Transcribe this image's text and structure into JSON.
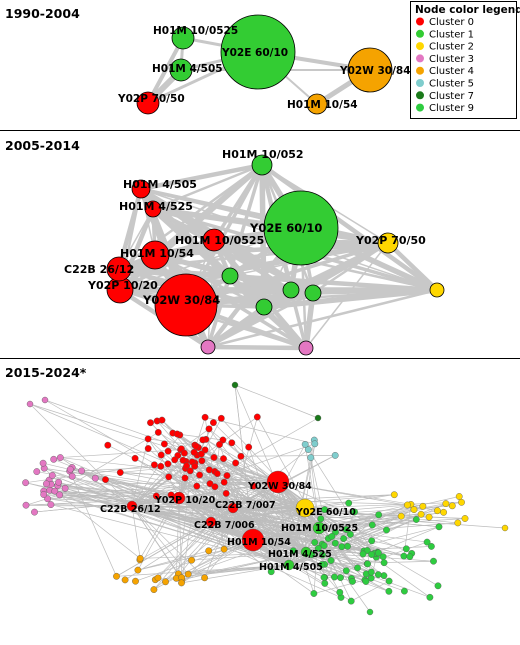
{
  "panels": [
    {
      "title": "1990-2004"
    },
    {
      "title": "2005-2014"
    },
    {
      "title": "2015-2024*"
    }
  ],
  "legend": {
    "title": "Node color legend",
    "items": [
      {
        "label": "Cluster 0",
        "color": "#ff0000"
      },
      {
        "label": "Cluster 1",
        "color": "#33cc33"
      },
      {
        "label": "Cluster 2",
        "color": "#ffd700"
      },
      {
        "label": "Cluster 3",
        "color": "#e377c2"
      },
      {
        "label": "Cluster 4",
        "color": "#f5a300"
      },
      {
        "label": "Cluster 5",
        "color": "#7fcdcd"
      },
      {
        "label": "Cluster 7",
        "color": "#1a7a1a"
      },
      {
        "label": "Cluster 9",
        "color": "#2ecc40"
      }
    ]
  },
  "node_labels": {
    "p1": [
      "H01M 10/0525",
      "Y02E 60/10",
      "H01M 4/505",
      "Y02W 30/84",
      "Y02P 70/50",
      "H01M 10/54"
    ],
    "p2": [
      "H01M 10/052",
      "H01M 4/505",
      "H01M 4/525",
      "Y02E 60/10",
      "H01M 10/0525",
      "Y02P 70/50",
      "H01M 10/54",
      "C22B 26/12",
      "Y02P 10/20",
      "Y02W 30/84"
    ],
    "p3": [
      "Y02W 30/84",
      "Y02P 10/20",
      "C22B 7/007",
      "Y02E 60/10",
      "C22B 26/12",
      "C22B 7/006",
      "H01M 10/0525",
      "H01M 10/54",
      "H01M 4/525",
      "H01M 4/505"
    ]
  }
}
